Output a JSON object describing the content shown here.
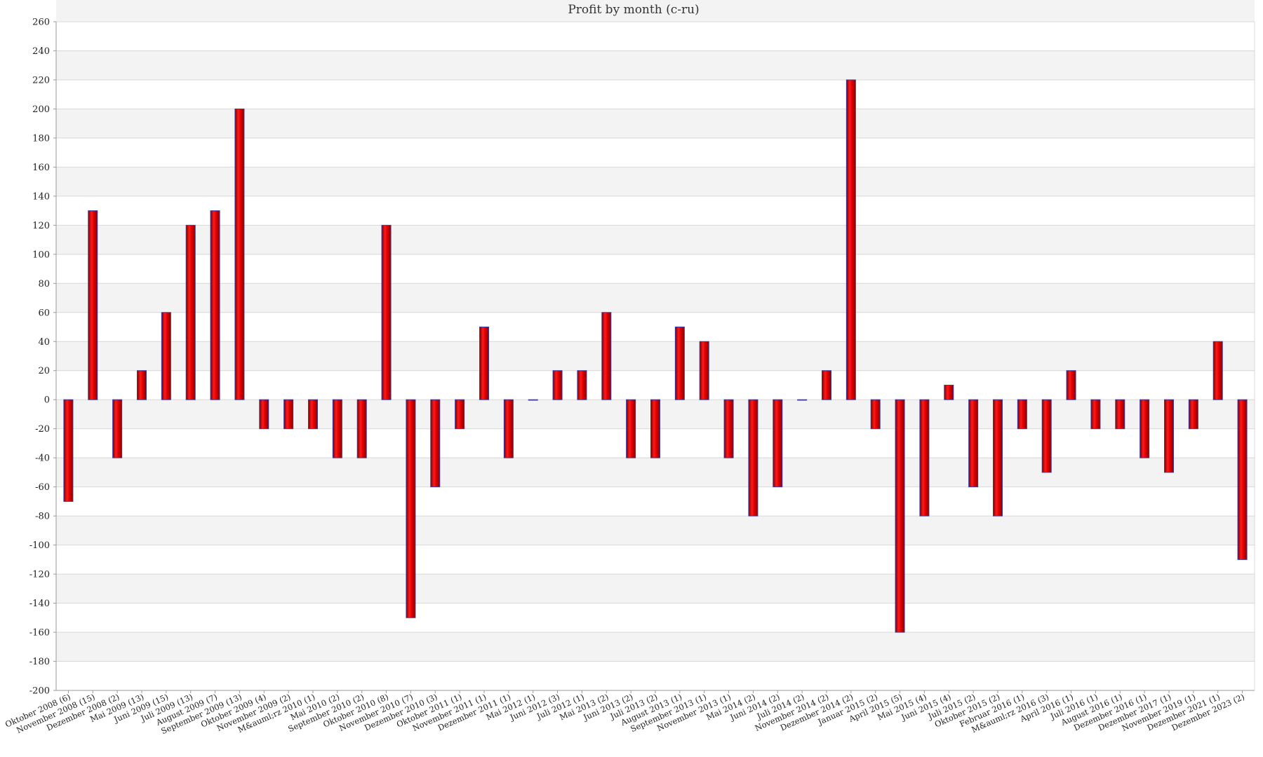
{
  "chart_data": {
    "type": "bar",
    "title": "Profit by month  (c-ru)",
    "xlabel": "",
    "ylabel": "",
    "ylim": [
      -200,
      260
    ],
    "yticks": [
      260,
      240,
      220,
      200,
      180,
      160,
      140,
      120,
      100,
      80,
      60,
      40,
      20,
      0,
      -20,
      -40,
      -60,
      -80,
      -100,
      -120,
      -140,
      -160,
      -180,
      -200
    ],
    "grid": true,
    "legend": "none",
    "colors": {
      "bar": "#dd0000",
      "bar_outline": "#3b3ba0",
      "band": "#f3f3f3",
      "grid": "#d8d8d8",
      "axis": "#9a9a9a"
    },
    "categories": [
      "Oktober 2008 (6)",
      "November 2008 (15)",
      "Dezember 2008 (2)",
      "Mai 2009 (13)",
      "Juni 2009 (15)",
      "Juli 2009 (13)",
      "August 2009 (7)",
      "September 2009 (13)",
      "Oktober 2009 (4)",
      "November 2009 (2)",
      "M&auml;rz 2010 (1)",
      "Mai 2010 (2)",
      "September 2010 (2)",
      "Oktober 2010 (8)",
      "November 2010 (7)",
      "Dezember 2010 (3)",
      "Oktober 2011 (1)",
      "November 2011 (1)",
      "Dezember 2011 (1)",
      "Mai 2012 (1)",
      "Juni 2012 (3)",
      "Juli 2012 (1)",
      "Mai 2013 (2)",
      "Juni 2013 (2)",
      "Juli 2013 (2)",
      "August 2013 (1)",
      "September 2013 (1)",
      "November 2013 (1)",
      "Mai 2014 (2)",
      "Juni 2014 (2)",
      "Juli 2014 (2)",
      "November 2014 (2)",
      "Dezember 2014 (2)",
      "Januar 2015 (2)",
      "April 2015 (5)",
      "Mai 2015 (4)",
      "Juni 2015 (4)",
      "Juli 2015 (2)",
      "Oktober 2015 (2)",
      "Februar 2016 (1)",
      "M&auml;rz 2016 (3)",
      "April 2016 (1)",
      "Juli 2016 (1)",
      "August 2016 (1)",
      "Dezember 2016 (1)",
      "Dezember 2017 (1)",
      "November 2019 (1)",
      "Dezember 2021 (1)",
      "Dezember 2023 (2)"
    ],
    "values": [
      -70,
      130,
      -40,
      20,
      60,
      120,
      130,
      200,
      -20,
      -20,
      -20,
      -40,
      -40,
      120,
      -150,
      -60,
      -20,
      50,
      -40,
      0,
      20,
      20,
      60,
      -40,
      -40,
      50,
      40,
      -40,
      -80,
      -60,
      0,
      20,
      220,
      -20,
      -160,
      -80,
      10,
      -60,
      -80,
      -20,
      -50,
      20,
      -20,
      -20,
      -40,
      -50,
      -20,
      40,
      -110
    ]
  }
}
